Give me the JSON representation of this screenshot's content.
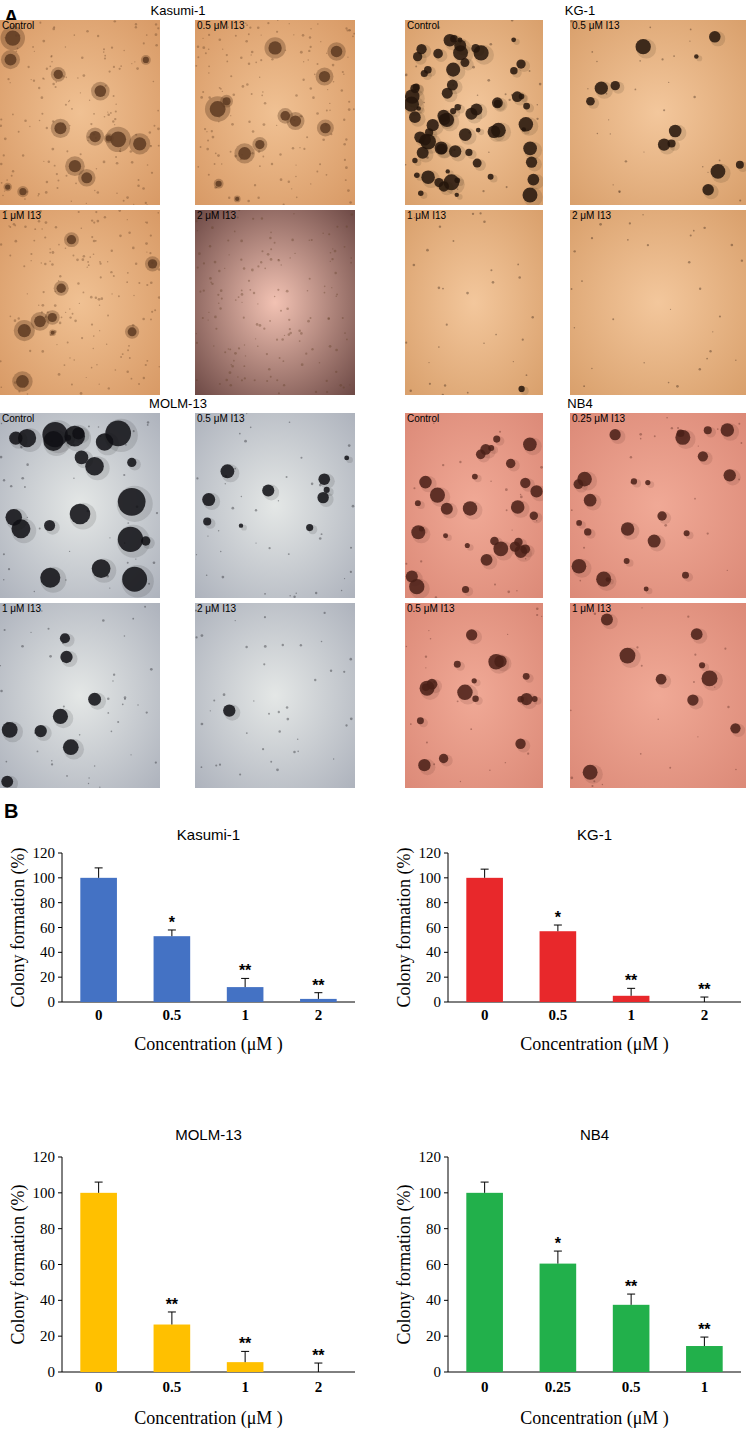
{
  "panel_labels": [
    "A",
    "B"
  ],
  "panel_a": [
    {
      "title": "Kasumi-1",
      "images": [
        "Control",
        "0.5 μM I13",
        "1 μM I13",
        "2 μM I13"
      ]
    },
    {
      "title": "KG-1",
      "images": [
        "Control",
        "0.5 μM I13",
        "1 μM I13",
        "2 μM I13"
      ]
    },
    {
      "title": "MOLM-13",
      "images": [
        "Control",
        "0.5 μM I13",
        "1 μM I13",
        "2 μM I13"
      ]
    },
    {
      "title": "NB4",
      "images": [
        "Control",
        "0.25 μM I13",
        "0.5 μM I13",
        "1 μM I13"
      ]
    }
  ],
  "chart_data": [
    {
      "type": "bar",
      "title": "Kasumi-1",
      "x_label": "Concentration (μM )",
      "y_label": "Colony formation (%)",
      "categories": [
        "0",
        "0.5",
        "1",
        "2"
      ],
      "values": [
        100,
        53,
        12,
        2.5
      ],
      "errors": [
        8,
        5,
        7,
        5
      ],
      "significance": [
        null,
        "*",
        "**",
        "**"
      ],
      "color": "#4472c4",
      "ylim": [
        0,
        120
      ],
      "yticks": [
        0,
        20,
        40,
        60,
        80,
        100,
        120
      ]
    },
    {
      "type": "bar",
      "title": "KG-1",
      "x_label": "Concentration (μM )",
      "y_label": "Colony formation (%)",
      "categories": [
        "0",
        "0.5",
        "1",
        "2"
      ],
      "values": [
        100,
        57,
        5,
        0
      ],
      "errors": [
        7,
        5,
        6,
        4
      ],
      "significance": [
        null,
        "*",
        "**",
        "**"
      ],
      "color": "#e8282b",
      "ylim": [
        0,
        120
      ],
      "yticks": [
        0,
        20,
        40,
        60,
        80,
        100,
        120
      ]
    },
    {
      "type": "bar",
      "title": "MOLM-13",
      "x_label": "Concentration (μM )",
      "y_label": "Colony formation (%)",
      "categories": [
        "0",
        "0.5",
        "1",
        "2"
      ],
      "values": [
        100,
        26.5,
        5.5,
        0
      ],
      "errors": [
        6,
        7,
        6,
        5
      ],
      "significance": [
        null,
        "**",
        "**",
        "**"
      ],
      "color": "#ffc000",
      "ylim": [
        0,
        120
      ],
      "yticks": [
        0,
        20,
        40,
        60,
        80,
        100,
        120
      ]
    },
    {
      "type": "bar",
      "title": "NB4",
      "x_label": "Concentration (μM )",
      "y_label": "Colony formation (%)",
      "categories": [
        "0",
        "0.25",
        "0.5",
        "1"
      ],
      "values": [
        100,
        60.5,
        37.5,
        14.5
      ],
      "errors": [
        6,
        7,
        6,
        5
      ],
      "significance": [
        null,
        "*",
        "**",
        "**"
      ],
      "color": "#22b04b",
      "ylim": [
        0,
        120
      ],
      "yticks": [
        0,
        20,
        40,
        60,
        80,
        100,
        120
      ]
    }
  ]
}
